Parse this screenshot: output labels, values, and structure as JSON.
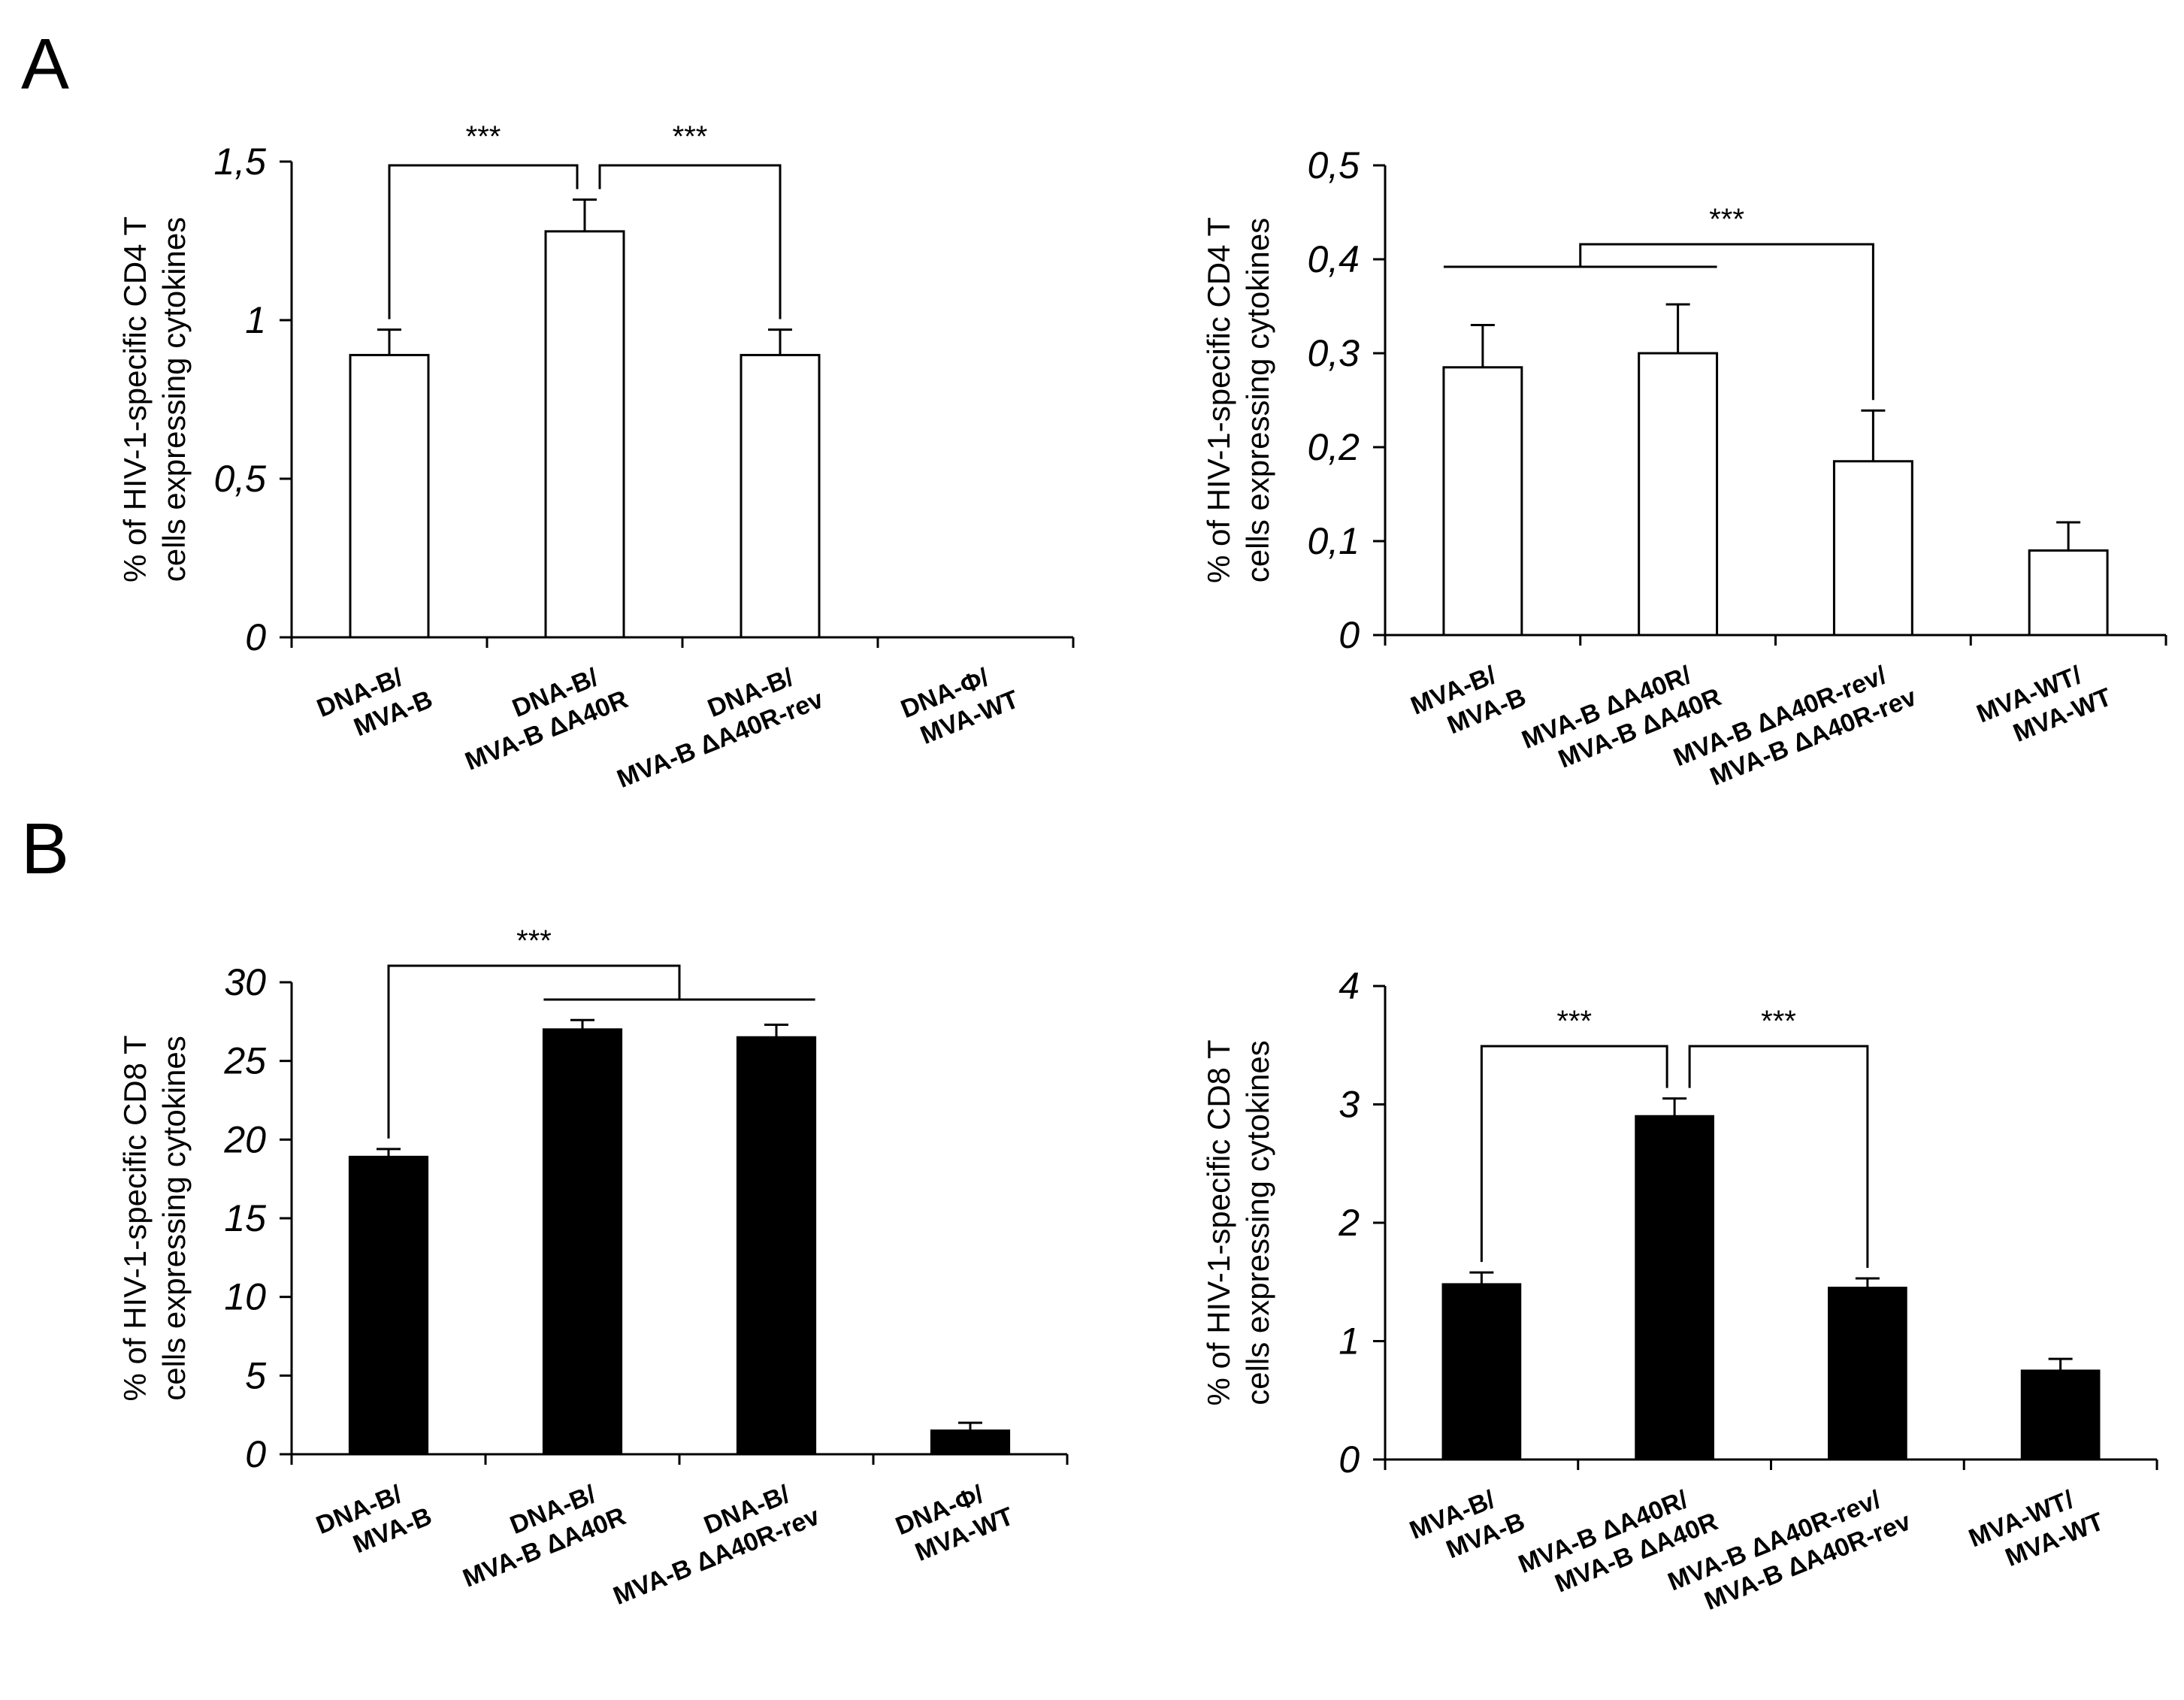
{
  "panels": [
    {
      "id": "panel-a",
      "letter": "A"
    },
    {
      "id": "panel-b",
      "letter": "B"
    }
  ],
  "chart_data": [
    {
      "id": "chart-a-left",
      "panel": "A",
      "type": "bar",
      "bar_color": "#ffffff",
      "ylabel": [
        "% of HIV-1-specific CD4 T",
        "cells expressing cytokines"
      ],
      "ylim": [
        0,
        1.5
      ],
      "yticks": [
        0,
        0.5,
        1,
        1.5
      ],
      "ytick_labels": [
        "0",
        "0,5",
        "1",
        "1,5"
      ],
      "categories": [
        [
          "DNA-B/",
          "MVA-B"
        ],
        [
          "DNA-B/",
          "MVA-B ΔA40R"
        ],
        [
          "DNA-B/",
          "MVA-B ΔA40R-rev"
        ],
        [
          "DNA-Φ/",
          "MVA-WT"
        ]
      ],
      "values": [
        0.89,
        1.28,
        0.89,
        0
      ],
      "errors": [
        0.08,
        0.1,
        0.08,
        0
      ],
      "significance": [
        {
          "type": "pair",
          "from": 0,
          "to": 1,
          "label": "***"
        },
        {
          "type": "pair",
          "from": 1,
          "to": 2,
          "label": "***",
          "joint": "left"
        }
      ]
    },
    {
      "id": "chart-a-right",
      "panel": "A",
      "type": "bar",
      "bar_color": "#ffffff",
      "ylabel": [
        "% of HIV-1-specific CD4 T",
        "cells expressing cytokines"
      ],
      "ylim": [
        0,
        0.5
      ],
      "yticks": [
        0,
        0.1,
        0.2,
        0.3,
        0.4,
        0.5
      ],
      "ytick_labels": [
        "0",
        "0,1",
        "0,2",
        "0,3",
        "0,4",
        "0,5"
      ],
      "categories": [
        [
          "MVA-B/",
          "MVA-B"
        ],
        [
          "MVA-B ΔA40R/",
          "MVA-B ΔA40R"
        ],
        [
          "MVA-B ΔA40R-rev/",
          "MVA-B ΔA40R-rev"
        ],
        [
          "MVA-WT/",
          "MVA-WT"
        ]
      ],
      "values": [
        0.285,
        0.3,
        0.185,
        0.09
      ],
      "errors": [
        0.045,
        0.052,
        0.054,
        0.03
      ],
      "significance": [
        {
          "type": "group",
          "group": [
            0,
            1
          ],
          "target": 2,
          "label": "***"
        }
      ]
    },
    {
      "id": "chart-b-left",
      "panel": "B",
      "type": "bar",
      "bar_color": "#000000",
      "ylabel": [
        "% of HIV-1-specific CD8 T",
        "cells expressing cytokines"
      ],
      "ylim": [
        0,
        30
      ],
      "yticks": [
        0,
        5,
        10,
        15,
        20,
        25,
        30
      ],
      "ytick_labels": [
        "0",
        "5",
        "10",
        "15",
        "20",
        "25",
        "30"
      ],
      "categories": [
        [
          "DNA-B/",
          "MVA-B"
        ],
        [
          "DNA-B/",
          "MVA-B ΔA40R"
        ],
        [
          "DNA-B/",
          "MVA-B ΔA40R-rev"
        ],
        [
          "DNA-Φ/",
          "MVA-WT"
        ]
      ],
      "values": [
        18.9,
        27.0,
        26.5,
        1.5
      ],
      "errors": [
        0.5,
        0.6,
        0.8,
        0.5
      ],
      "significance": [
        {
          "type": "group",
          "group": [
            1,
            2
          ],
          "target": 0,
          "label": "***"
        }
      ]
    },
    {
      "id": "chart-b-right",
      "panel": "B",
      "type": "bar",
      "bar_color": "#000000",
      "ylabel": [
        "% of HIV-1-specific CD8 T",
        "cells expressing cytokines"
      ],
      "ylim": [
        0,
        4
      ],
      "yticks": [
        0,
        1,
        2,
        3,
        4
      ],
      "ytick_labels": [
        "0",
        "1",
        "2",
        "3",
        "4"
      ],
      "categories": [
        [
          "MVA-B/",
          "MVA-B"
        ],
        [
          "MVA-B ΔA40R/",
          "MVA-B ΔA40R"
        ],
        [
          "MVA-B ΔA40R-rev/",
          "MVA-B ΔA40R-rev"
        ],
        [
          "MVA-WT/",
          "MVA-WT"
        ]
      ],
      "values": [
        1.48,
        2.9,
        1.45,
        0.75
      ],
      "errors": [
        0.1,
        0.15,
        0.08,
        0.1
      ],
      "significance": [
        {
          "type": "pair",
          "from": 0,
          "to": 1,
          "label": "***"
        },
        {
          "type": "pair",
          "from": 1,
          "to": 2,
          "label": "***",
          "joint": "left"
        }
      ]
    }
  ]
}
